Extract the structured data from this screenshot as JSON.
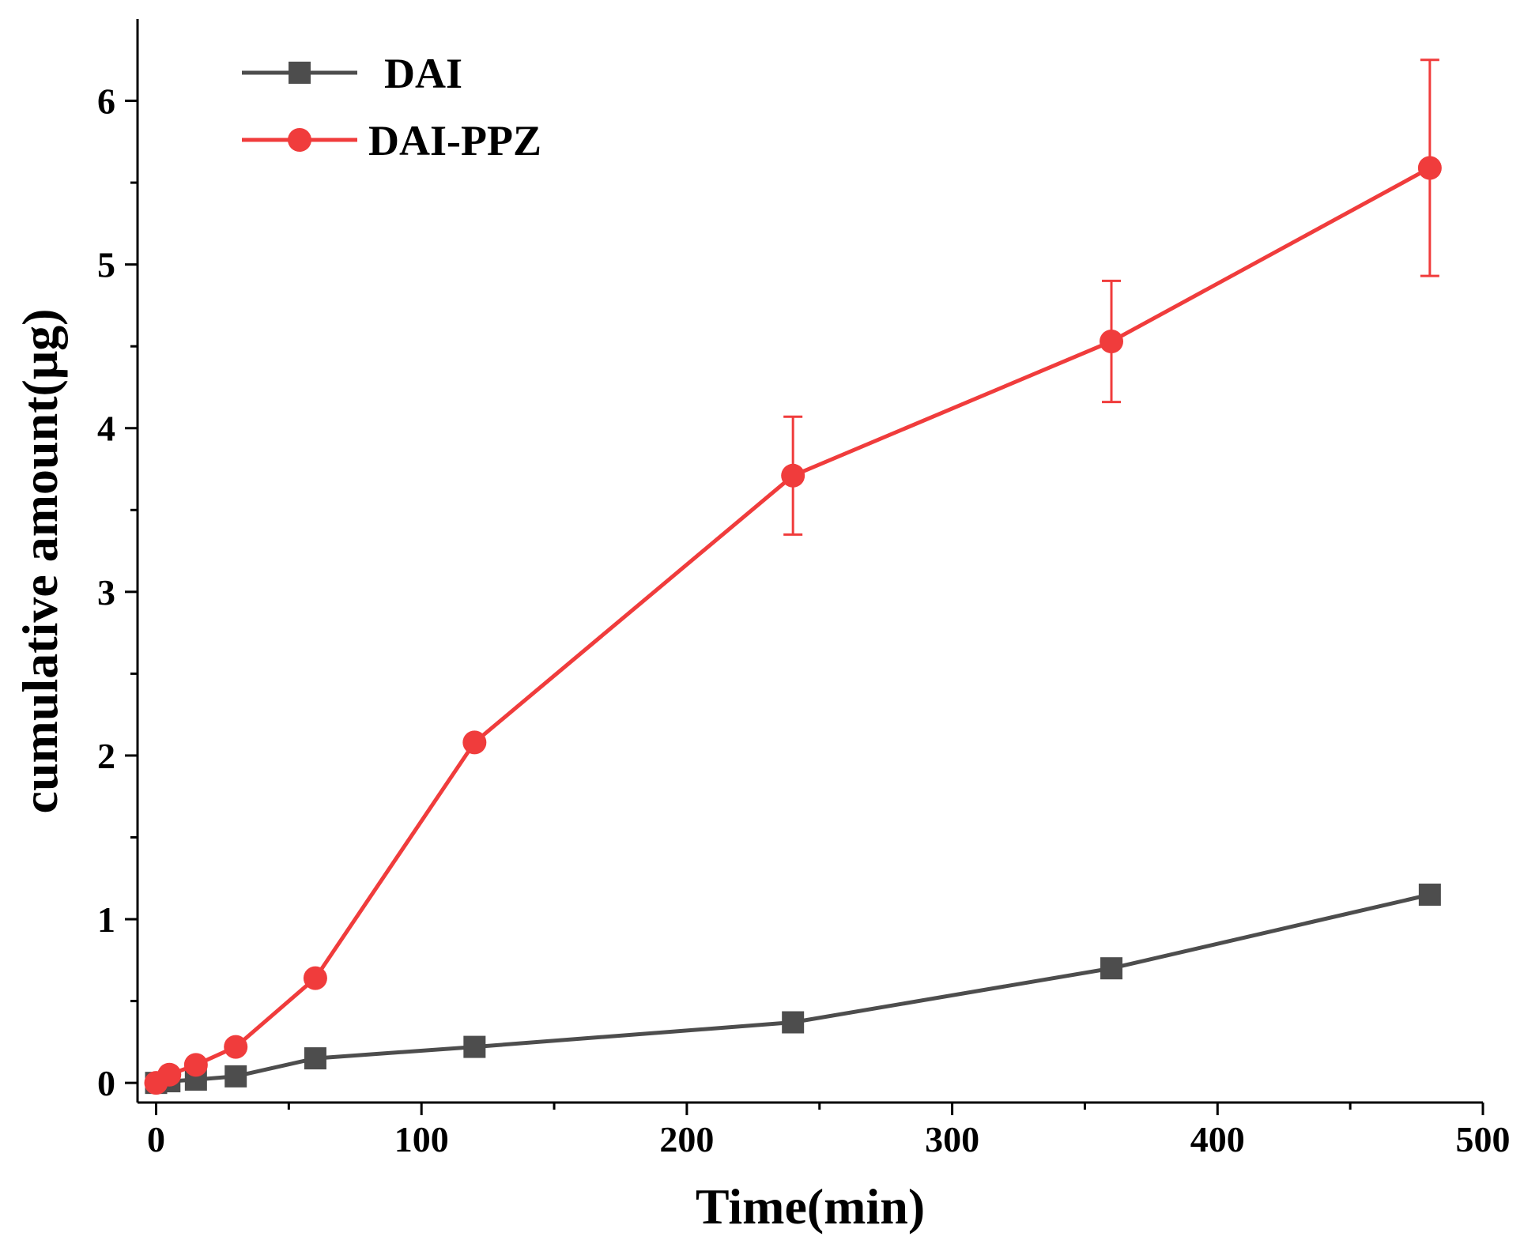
{
  "chart_data": {
    "type": "line",
    "title": "",
    "xlabel": "Time(min)",
    "ylabel": "cumulative amount(μg)",
    "xlim": [
      -7,
      500
    ],
    "ylim": [
      -0.12,
      6.5
    ],
    "x_ticks": [
      0,
      100,
      200,
      300,
      400,
      500
    ],
    "x_tick_labels": [
      "0",
      "100",
      "200",
      "300",
      "400",
      "500"
    ],
    "y_ticks": [
      0,
      1,
      2,
      3,
      4,
      5,
      6
    ],
    "y_tick_labels": [
      "0",
      "1",
      "2",
      "3",
      "4",
      "5",
      "6"
    ],
    "grid": false,
    "legend_position": "top-left",
    "series": [
      {
        "name": "DAI",
        "color": "#4d4d4d",
        "marker": "square",
        "x": [
          0,
          5,
          15,
          30,
          60,
          120,
          240,
          360,
          480
        ],
        "values": [
          0.0,
          0.01,
          0.02,
          0.04,
          0.15,
          0.22,
          0.37,
          0.7,
          1.15
        ],
        "error": [
          0,
          0,
          0,
          0,
          0,
          0,
          0,
          0,
          0
        ]
      },
      {
        "name": "DAI-PPZ",
        "color": "#f03c3c",
        "marker": "circle",
        "x": [
          0,
          5,
          15,
          30,
          60,
          120,
          240,
          360,
          480
        ],
        "values": [
          0.0,
          0.05,
          0.11,
          0.22,
          0.64,
          2.08,
          3.71,
          4.53,
          5.59
        ],
        "error": [
          0,
          0,
          0,
          0,
          0,
          0,
          0.36,
          0.37,
          0.66
        ]
      }
    ]
  }
}
